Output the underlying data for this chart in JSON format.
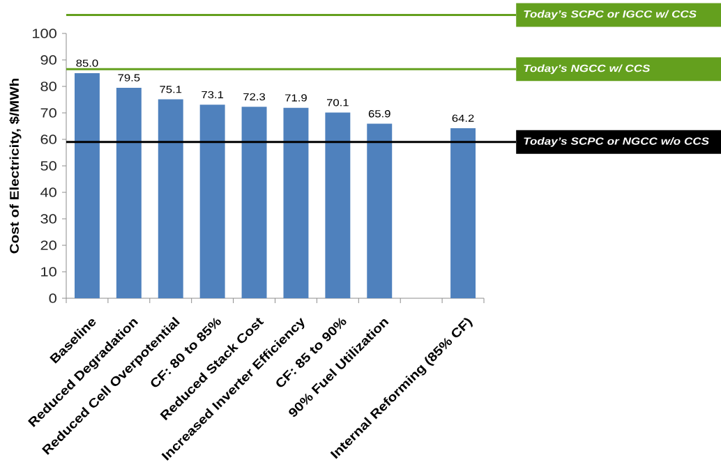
{
  "chart_data": {
    "type": "bar",
    "ylabel": "Cost of Electricity, $/MWh",
    "categories": [
      "Baseline",
      "Reduced Degradation",
      "Reduced Cell Overpotential",
      "CF: 80 to 85%",
      "Reduced Stack Cost",
      "Increased Inverter Efficiency",
      "CF: 85 to 90%",
      "90% Fuel Utilization",
      null,
      "Internal Reforming (85% CF)"
    ],
    "values": [
      85.0,
      79.5,
      75.1,
      73.1,
      72.3,
      71.9,
      70.1,
      65.9,
      null,
      64.2
    ],
    "value_labels": [
      "85.0",
      "79.5",
      "75.1",
      "73.1",
      "72.3",
      "71.9",
      "70.1",
      "65.9",
      null,
      "64.2"
    ],
    "color": "#4f81bd",
    "ylim": [
      0,
      100
    ],
    "yticks": [
      0,
      10,
      20,
      30,
      40,
      50,
      60,
      70,
      80,
      90,
      100
    ],
    "ref_lines": [
      {
        "axis": "y",
        "value": 107,
        "label": "Today’s SCPC or IGCC w/ CCS",
        "color": "#64a01e"
      },
      {
        "axis": "y",
        "value": 86.5,
        "label": "Today’s NGCC w/ CCS",
        "color": "#64a01e"
      },
      {
        "axis": "y",
        "value": 59,
        "label": "Today’s SCPC or NGCC w/o CCS",
        "color": "#000000"
      }
    ]
  }
}
